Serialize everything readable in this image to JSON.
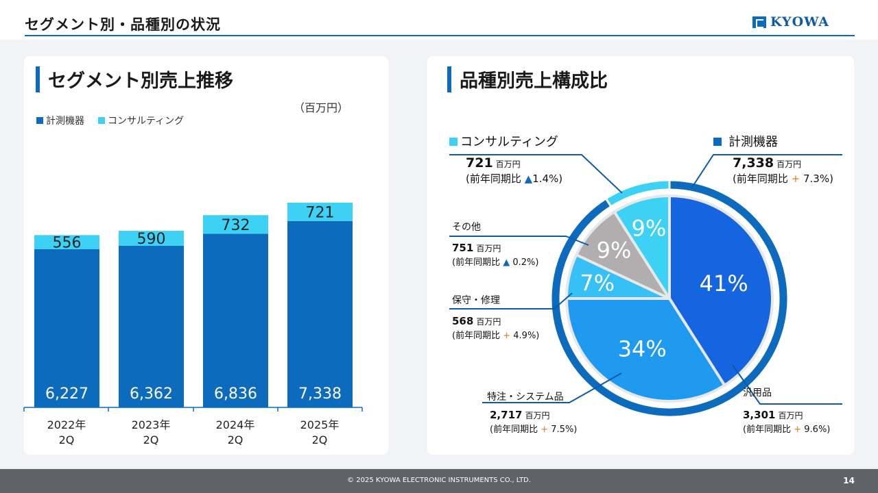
{
  "header": {
    "title": "セグメント別・品種別の状況",
    "logo_text": "KYOWA"
  },
  "left": {
    "title": "セグメント別売上推移",
    "unit": "（百万円）",
    "legend": [
      {
        "label": "計測機器",
        "color": "#0d6bbd"
      },
      {
        "label": "コンサルティング",
        "color": "#3dd2f5"
      }
    ]
  },
  "right": {
    "title": "品種別売上構成比"
  },
  "chart_data": [
    {
      "type": "bar",
      "stacked": true,
      "categories": [
        "2022年\n2Q",
        "2023年\n2Q",
        "2024年\n2Q",
        "2025年\n2Q"
      ],
      "series": [
        {
          "name": "計測機器",
          "values": [
            6227,
            6362,
            6836,
            7338
          ],
          "labels": [
            "6,227",
            "6,362",
            "6,836",
            "7,338"
          ],
          "color": "#0d6bbd"
        },
        {
          "name": "コンサルティング",
          "values": [
            556,
            590,
            732,
            721
          ],
          "labels": [
            "556",
            "590",
            "732",
            "721"
          ],
          "color": "#3dd2f5"
        }
      ],
      "ylim": [
        0,
        8500
      ]
    },
    {
      "type": "pie",
      "slices": [
        {
          "name": "汎用品",
          "pct": 41,
          "pct_label": "41%",
          "value": "3,301",
          "unit": "百万円",
          "yoy_prefix": "(前年同期比",
          "yoy_sign": "+",
          "yoy_value": "9.6",
          "yoy_suffix": "%)",
          "color": "#1565e0"
        },
        {
          "name": "特注・システム品",
          "pct": 34,
          "pct_label": "34%",
          "value": "2,717",
          "unit": "百万円",
          "yoy_prefix": "(前年同期比",
          "yoy_sign": "+",
          "yoy_value": "7.5",
          "yoy_suffix": "%)",
          "color": "#1e9af0"
        },
        {
          "name": "保守・修理",
          "pct": 7,
          "pct_label": "7%",
          "value": "568",
          "unit": "百万円",
          "yoy_prefix": "(前年同期比",
          "yoy_sign": "+",
          "yoy_value": "4.9",
          "yoy_suffix": "%)",
          "color": "#36c0f5"
        },
        {
          "name": "その他",
          "pct": 9,
          "pct_label": "9%",
          "value": "751",
          "unit": "百万円",
          "yoy_prefix": "(前年同期比",
          "yoy_sign": "▲",
          "yoy_value": "0.2",
          "yoy_suffix": "%)",
          "color": "#b0aeae"
        },
        {
          "name": "コンサルティング",
          "pct": 9,
          "pct_label": "9%",
          "value": "721",
          "unit": "百万円",
          "yoy_prefix": "(前年同期比",
          "yoy_sign": "▲",
          "yoy_value": "1.4",
          "yoy_suffix": "%)",
          "color": "#3dd2f5"
        }
      ],
      "outer_ring": [
        {
          "name": "計測機器",
          "pct": 91,
          "value": "7,338",
          "unit": "百万円",
          "yoy_prefix": "(前年同期比",
          "yoy_sign": "+",
          "yoy_value": "7.3",
          "yoy_suffix": "%)",
          "color": "#0d6bbd"
        },
        {
          "name": "コンサルティング",
          "pct": 9,
          "color": "#3dd2f5"
        }
      ]
    }
  ],
  "footer": {
    "copyright": "© 2025 KYOWA ELECTRONIC INSTRUMENTS CO., LTD.",
    "page": "14"
  }
}
